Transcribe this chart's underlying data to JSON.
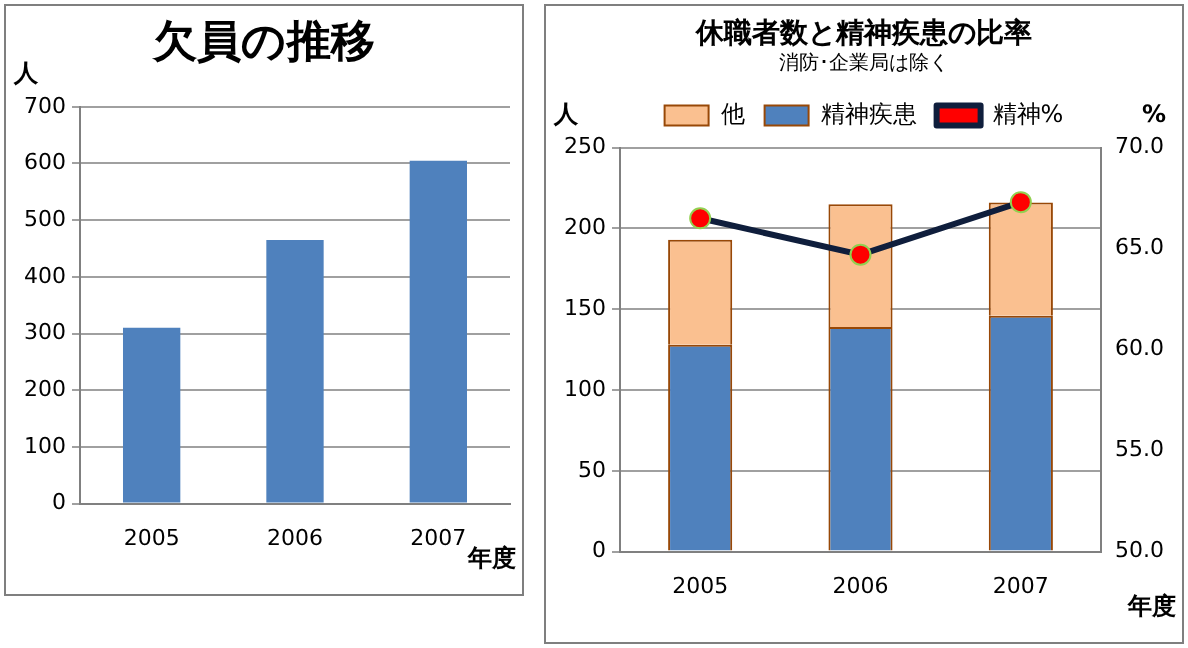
{
  "chart_data": [
    {
      "type": "bar",
      "title": "欠員の推移",
      "ylabel": "人",
      "xlabel": "年度",
      "categories": [
        "2005",
        "2006",
        "2007"
      ],
      "series": [
        {
          "color": "#4f81bd",
          "values": [
            310,
            465,
            605
          ]
        }
      ],
      "ylim": [
        0,
        700
      ],
      "yticks": [
        0,
        100,
        200,
        300,
        400,
        500,
        600,
        700
      ],
      "grid": "y",
      "legend": false
    },
    {
      "type": "bar",
      "title": "休職者数と精神疾患の比率",
      "subtitle": "消防･企業局は除く",
      "ylabel": "人",
      "y2label": "%",
      "xlabel": "年度",
      "categories": [
        "2005",
        "2006",
        "2007"
      ],
      "stacked": true,
      "series": [
        {
          "name": "精神疾患",
          "color": "#4f81bd",
          "values": [
            128,
            139,
            146
          ]
        },
        {
          "name": "他",
          "color": "#fac090",
          "values": [
            65,
            76,
            70
          ]
        },
        {
          "name": "精神%",
          "type": "line",
          "axis": "y2",
          "color": "#0f1e3c",
          "values": [
            66.5,
            64.7,
            67.3
          ]
        }
      ],
      "marker": "circle",
      "ylim": [
        0,
        250
      ],
      "yticks": [
        0,
        50,
        100,
        150,
        200,
        250
      ],
      "y2lim": [
        50,
        70
      ],
      "y2ticks": [
        {
          "value": 50,
          "label": "50.0"
        },
        {
          "value": 55,
          "label": "55.0"
        },
        {
          "value": 60,
          "label": "60.0"
        },
        {
          "value": 65,
          "label": "65.0"
        },
        {
          "value": 70,
          "label": "70.0"
        }
      ],
      "grid": "y",
      "legend": "top"
    }
  ]
}
